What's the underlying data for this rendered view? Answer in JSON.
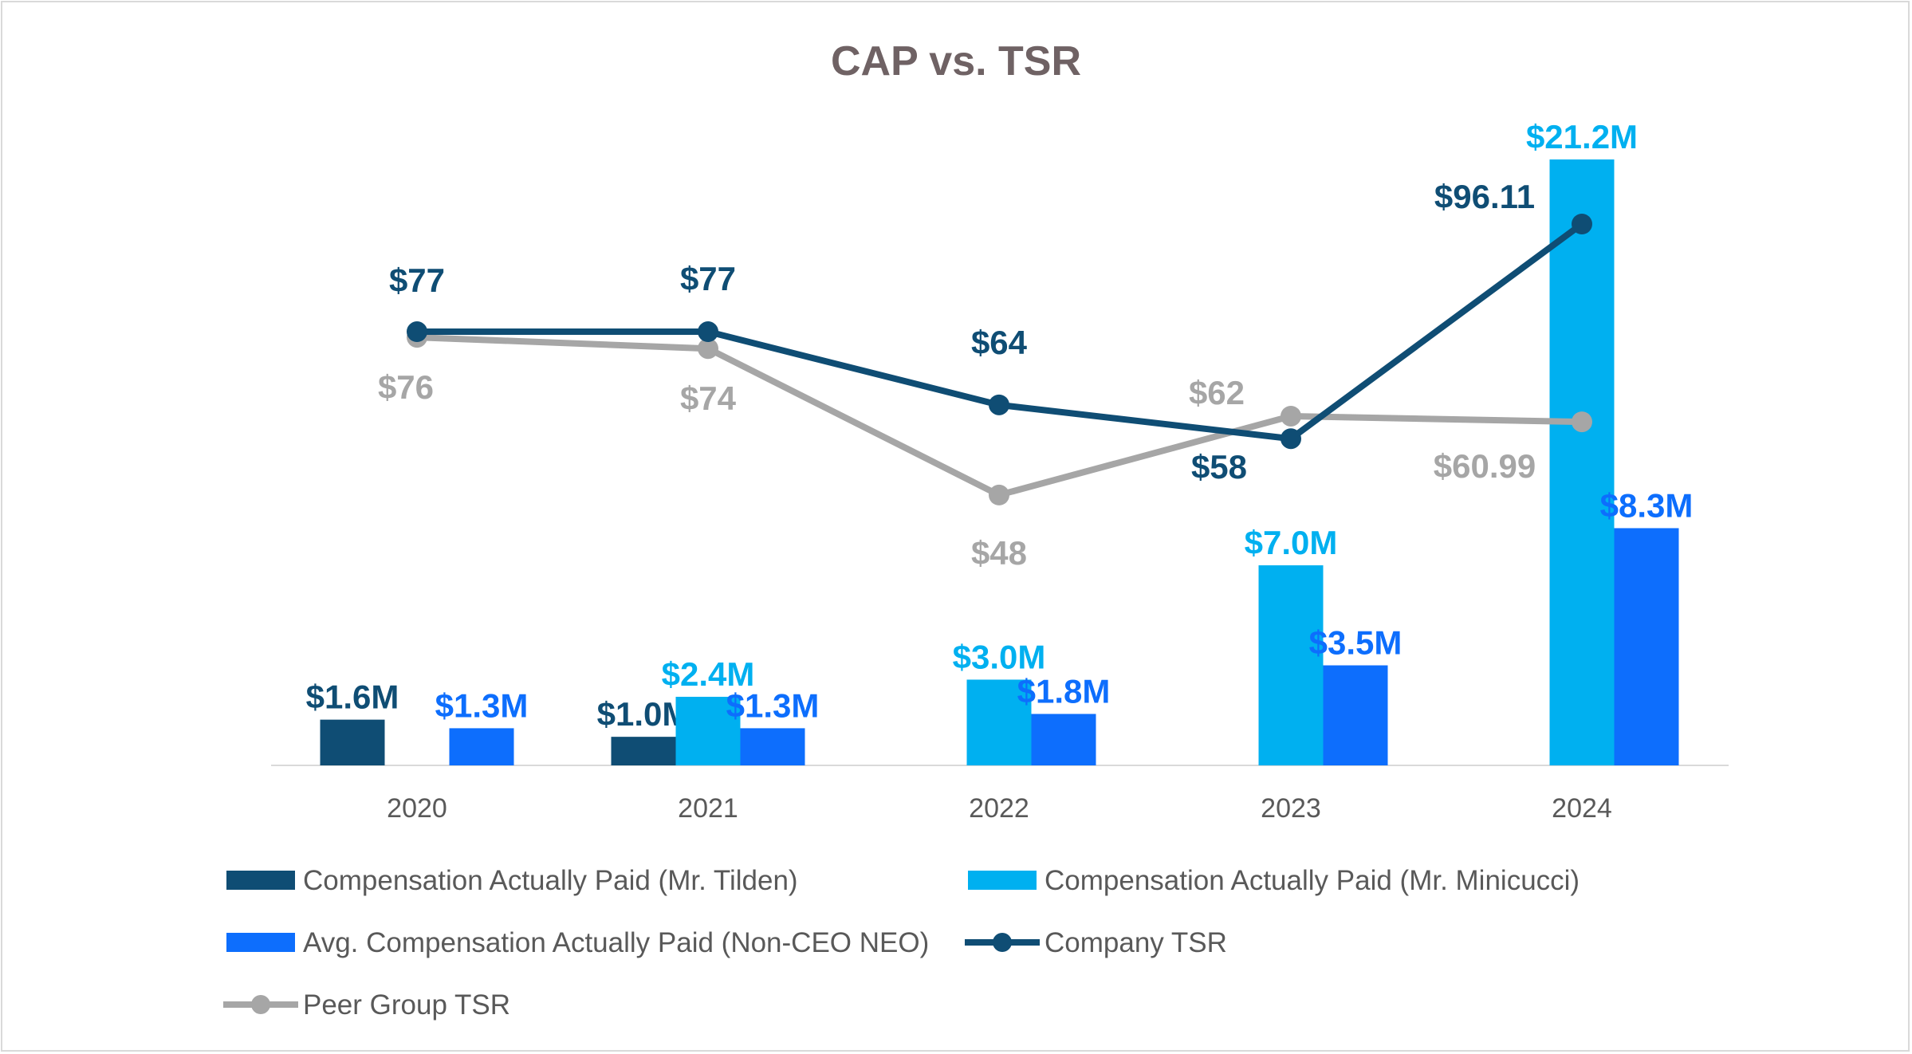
{
  "chart_data": {
    "type": "bar",
    "title": "CAP vs. TSR",
    "categories": [
      "2020",
      "2021",
      "2022",
      "2023",
      "2024"
    ],
    "bar_series": [
      {
        "name": "Compensation Actually Paid (Mr. Tilden)",
        "color": "#0f4d74",
        "values": [
          1.6,
          1.0,
          null,
          null,
          null
        ],
        "labels": [
          "$1.6M",
          "$1.0M",
          "",
          "",
          ""
        ]
      },
      {
        "name": "Compensation Actually Paid (Mr. Minicucci)",
        "color": "#00b0f0",
        "values": [
          null,
          2.4,
          3.0,
          7.0,
          21.2
        ],
        "labels": [
          "",
          "$2.4M",
          "$3.0M",
          "$7.0M",
          "$21.2M"
        ]
      },
      {
        "name": "Avg. Compensation Actually Paid (Non-CEO NEO)",
        "color": "#0d6efd",
        "values": [
          1.3,
          1.3,
          1.8,
          3.5,
          8.3
        ],
        "labels": [
          "$1.3M",
          "$1.3M",
          "$1.8M",
          "$3.5M",
          "$8.3M"
        ]
      }
    ],
    "line_series": [
      {
        "name": "Company TSR",
        "color": "#0f4d74",
        "values": [
          77,
          77,
          64,
          58,
          96.11
        ],
        "labels": [
          "$77",
          "$77",
          "$64",
          "$58",
          "$96.11"
        ]
      },
      {
        "name": "Peer Group TSR",
        "color": "#a6a6a6",
        "values": [
          76,
          74,
          48,
          62,
          60.99
        ],
        "labels": [
          "$76",
          "$74",
          "$48",
          "$62",
          "$60.99"
        ]
      }
    ],
    "bar_ylim": [
      0,
      21.2
    ],
    "line_ylim": [
      0,
      96.11
    ],
    "legend": "bottom"
  }
}
